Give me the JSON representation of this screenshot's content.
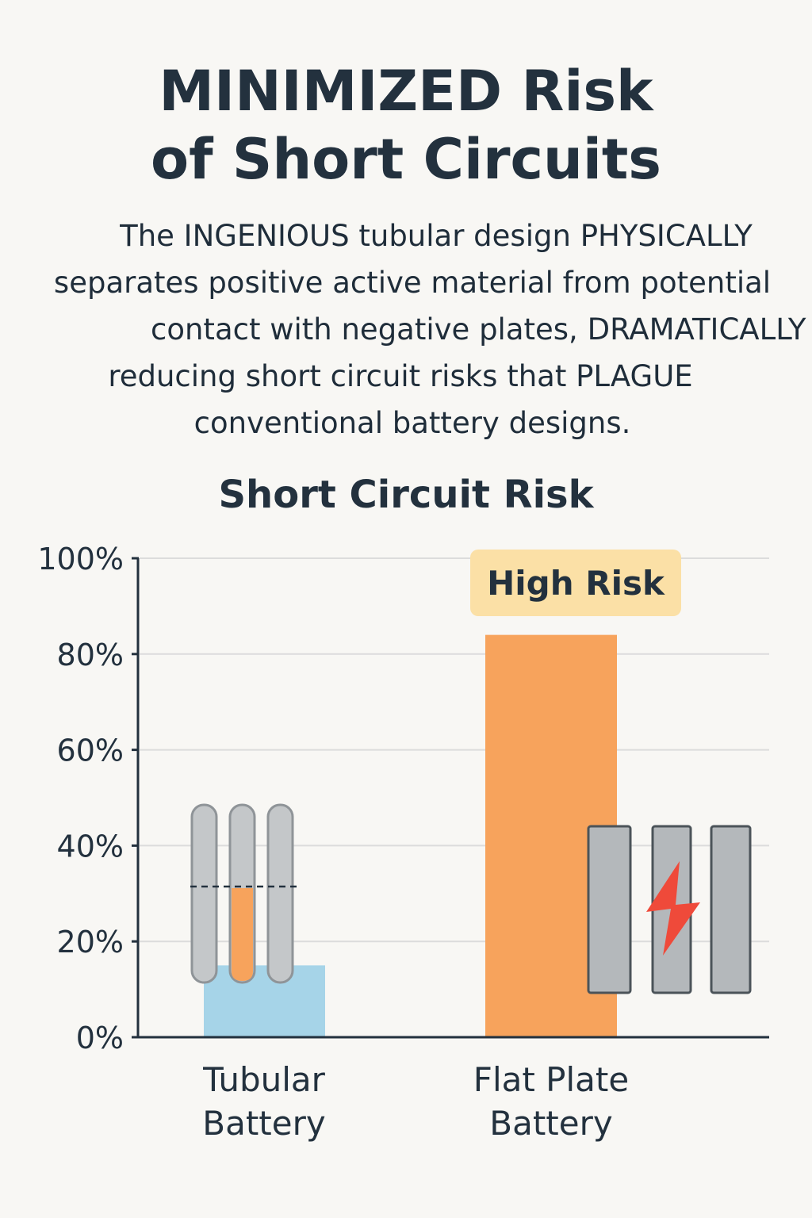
{
  "headline": {
    "line1": "MINIMIZED Risk",
    "line2": "of Short Circuits"
  },
  "description": {
    "lines": [
      "The INGENIOUS tubular design PHYSICALLY",
      "separates positive active material from potential",
      "contact with negative plates, DRAMATICALLY",
      "reducing short circuit risks that PLAGUE",
      "conventional battery designs."
    ]
  },
  "colors": {
    "tubular_bar": "#a6d4e8",
    "flat_plate_bar": "#f7a35c",
    "badge": "#fbe0a6",
    "spark": "#ef4a3a",
    "plate_gray": "#b8bcbf"
  },
  "icons": {
    "tubular": "tubular-plates-icon",
    "flat": "flat-plates-spark-icon"
  },
  "chart_data": {
    "type": "bar",
    "title": "Short Circuit Risk",
    "categories": [
      {
        "line1": "Tubular",
        "line2": "Battery"
      },
      {
        "line1": "Flat Plate",
        "line2": "Battery"
      }
    ],
    "values": [
      15,
      84
    ],
    "ylim": [
      0,
      100
    ],
    "yticks": [
      "0%",
      "20%",
      "40%",
      "60%",
      "80%",
      "100%"
    ],
    "ytick_values": [
      0,
      20,
      40,
      60,
      80,
      100
    ],
    "grid": true,
    "annotation": "High Risk"
  }
}
